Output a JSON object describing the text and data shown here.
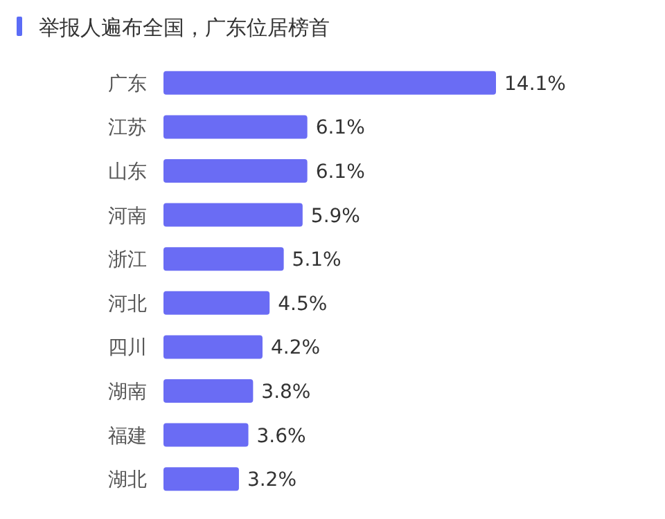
{
  "chart_data": {
    "type": "bar",
    "orientation": "horizontal",
    "title": "举报人遍布全国，广东位居榜首",
    "categories": [
      "广东",
      "江苏",
      "山东",
      "河南",
      "浙江",
      "河北",
      "四川",
      "湖南",
      "福建",
      "湖北"
    ],
    "values": [
      14.1,
      6.1,
      6.1,
      5.9,
      5.1,
      4.5,
      4.2,
      3.8,
      3.6,
      3.2
    ],
    "value_labels": [
      "14.1%",
      "6.1%",
      "6.1%",
      "5.9%",
      "5.1%",
      "4.5%",
      "4.2%",
      "3.8%",
      "3.6%",
      "3.2%"
    ],
    "color": "#6a6cf4",
    "xlim": [
      0,
      14.1
    ],
    "tick_labels": "y"
  }
}
